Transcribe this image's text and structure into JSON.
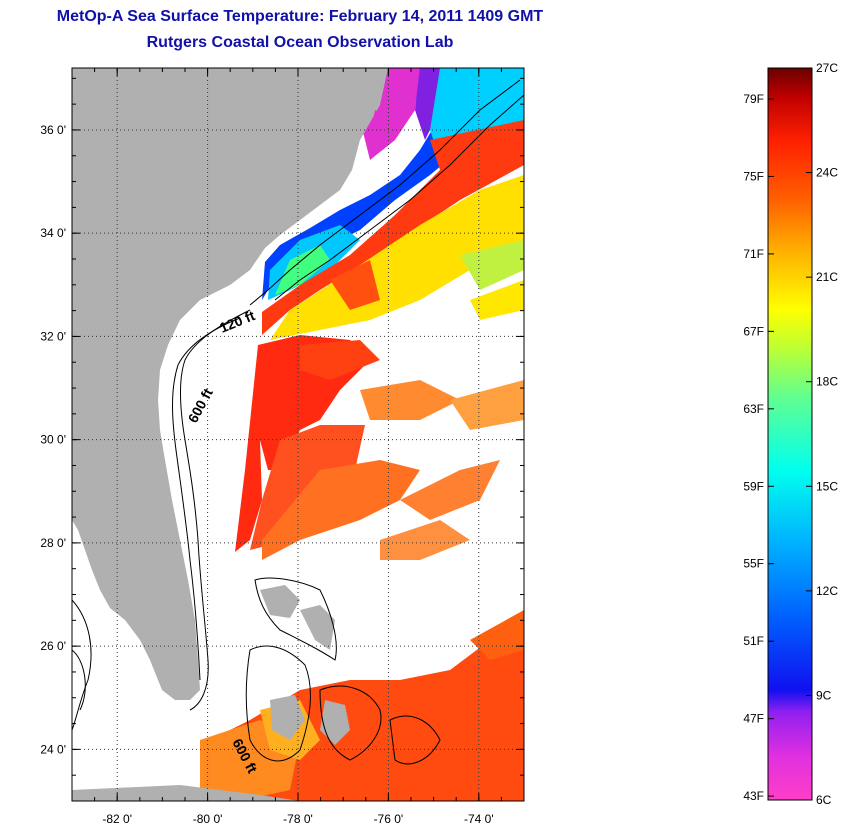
{
  "title": "MetOp-A Sea Surface Temperature:  February 14, 2011 1409 GMT",
  "subtitle": "Rutgers Coastal Ocean Observation Lab",
  "map": {
    "lon_ticks": [
      {
        "value": -82,
        "label": "-82 0'"
      },
      {
        "value": -80,
        "label": "-80 0'"
      },
      {
        "value": -78,
        "label": "-78 0'"
      },
      {
        "value": -76,
        "label": "-76 0'"
      },
      {
        "value": -74,
        "label": "-74 0'"
      }
    ],
    "lat_ticks": [
      {
        "value": 36,
        "label": "36 0'"
      },
      {
        "value": 34,
        "label": "34 0'"
      },
      {
        "value": 32,
        "label": "32 0'"
      },
      {
        "value": 30,
        "label": "30 0'"
      },
      {
        "value": 28,
        "label": "28 0'"
      },
      {
        "value": 26,
        "label": "26 0'"
      },
      {
        "value": 24,
        "label": "24 0'"
      }
    ],
    "lon_range": [
      -83,
      -73
    ],
    "lat_range": [
      23,
      37.2
    ],
    "contour_labels": [
      "120 ft",
      "600 ft",
      "600 ft"
    ],
    "land_color": "#b0b0b0"
  },
  "colorbar": {
    "f_labels": [
      "79F",
      "75F",
      "71F",
      "67F",
      "63F",
      "59F",
      "55F",
      "51F",
      "47F",
      "43F"
    ],
    "c_labels": [
      "27C",
      "24C",
      "21C",
      "18C",
      "15C",
      "12C",
      "9C",
      "6C"
    ],
    "range_c": [
      6,
      27
    ],
    "colors": [
      "#ff3ec8",
      "#a020f0",
      "#0000ff",
      "#0090ff",
      "#00ffff",
      "#80ff80",
      "#ffff00",
      "#ffa000",
      "#ff3000",
      "#c00000",
      "#700000"
    ]
  }
}
